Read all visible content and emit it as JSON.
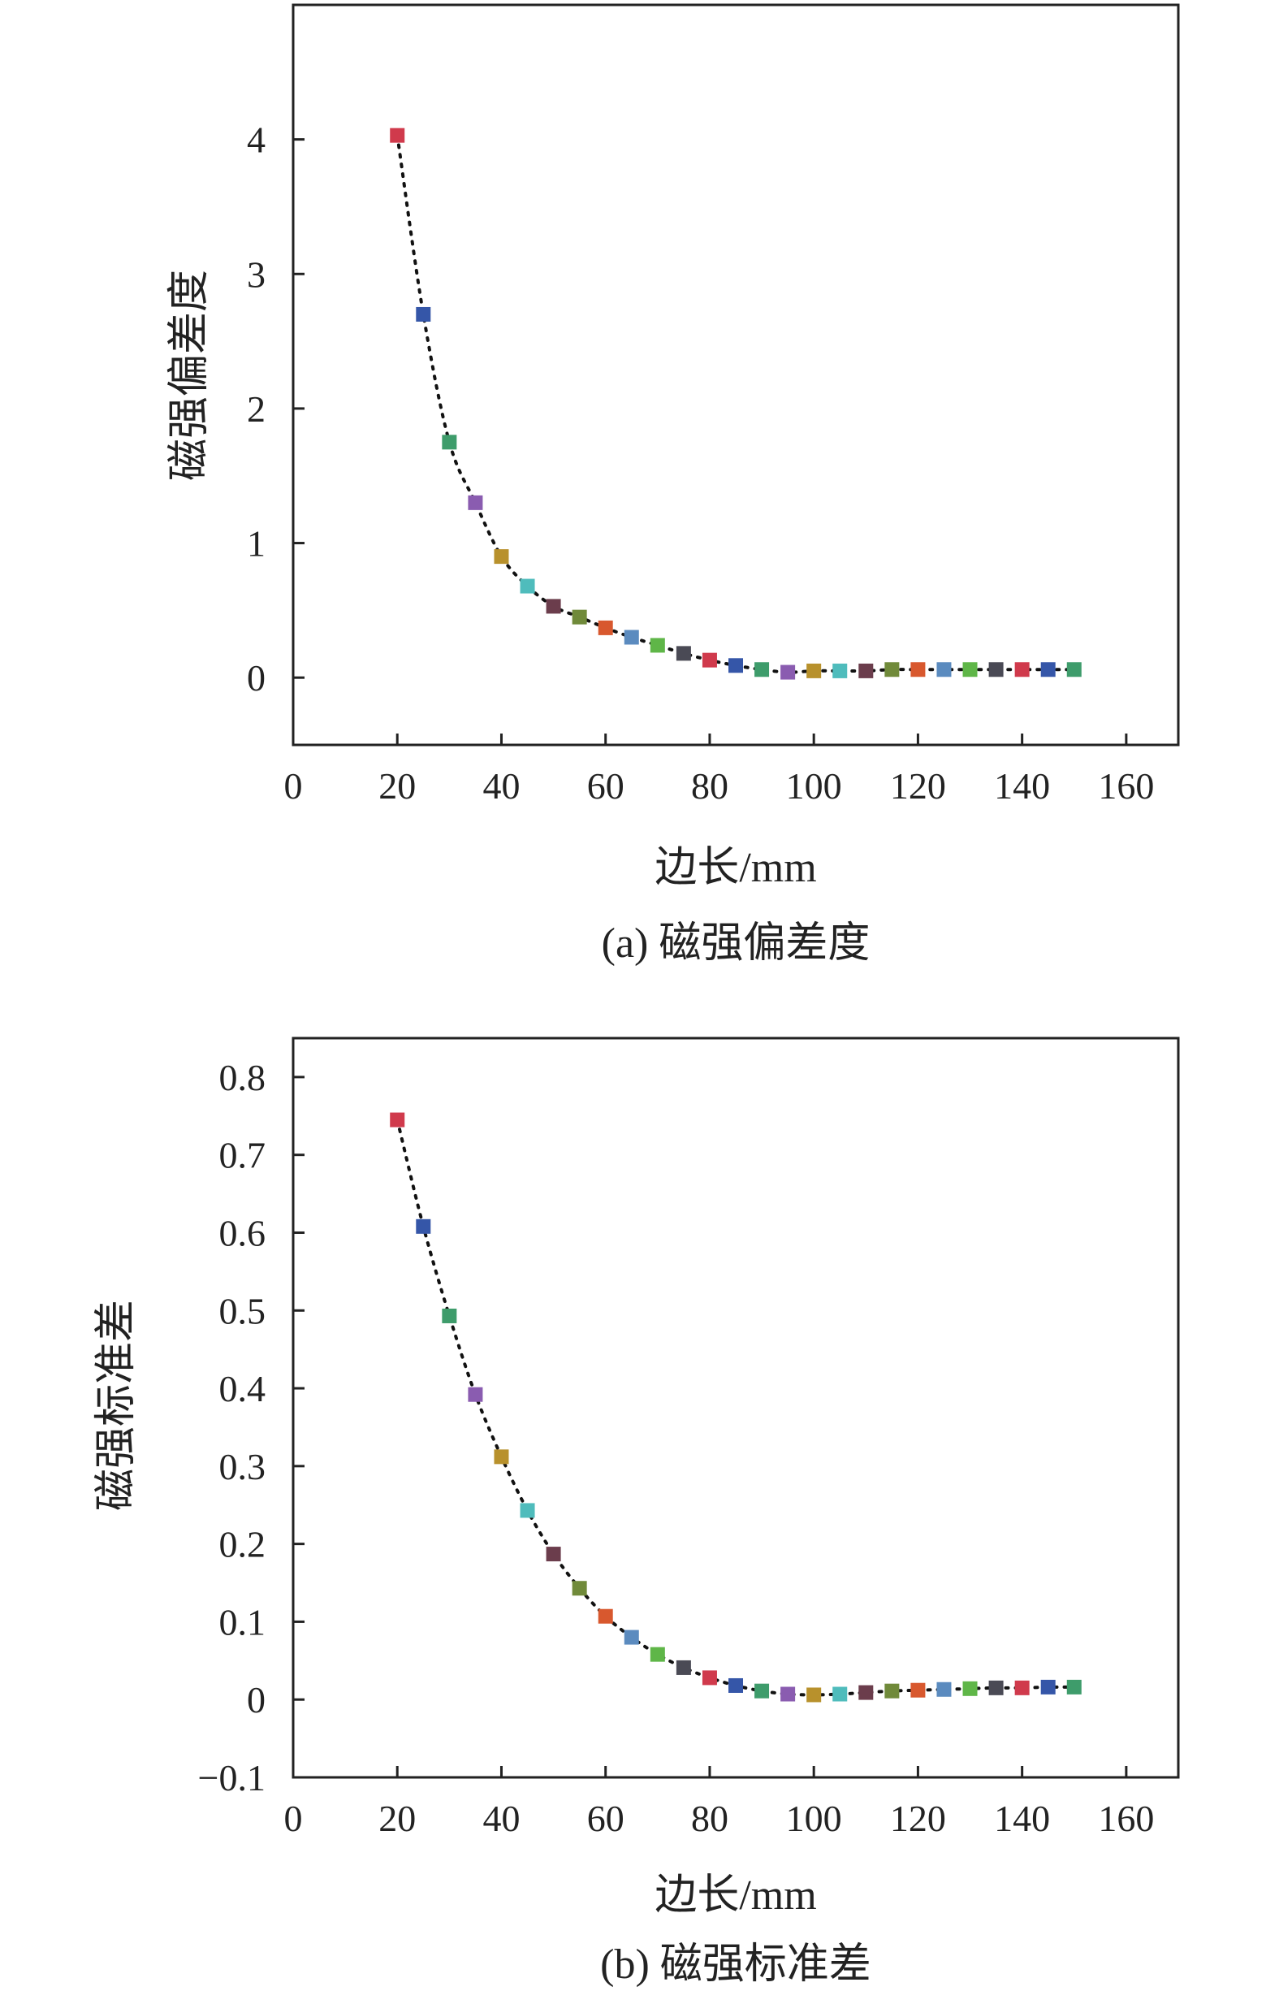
{
  "chart_data": [
    {
      "type": "scatter",
      "caption": "(a) 磁强偏差度",
      "xlabel": "边长/mm",
      "ylabel": "磁强偏差度",
      "xlim": [
        0,
        170
      ],
      "ylim": [
        -0.5,
        5.0
      ],
      "xticks": [
        0,
        20,
        40,
        60,
        80,
        100,
        120,
        140,
        160
      ],
      "yticks": [
        0,
        1,
        2,
        3,
        4
      ],
      "grid": false,
      "trend_line": "dotted",
      "series": [
        {
          "x": [
            20,
            25,
            30,
            35,
            40,
            45,
            50,
            55,
            60,
            65,
            70,
            75,
            80,
            85,
            90,
            95,
            100,
            105,
            110,
            115,
            120,
            125,
            130,
            135,
            140,
            145,
            150
          ],
          "y": [
            4.03,
            2.7,
            1.75,
            1.3,
            0.9,
            0.68,
            0.53,
            0.45,
            0.37,
            0.3,
            0.24,
            0.18,
            0.13,
            0.09,
            0.06,
            0.04,
            0.05,
            0.05,
            0.05,
            0.06,
            0.06,
            0.06,
            0.06,
            0.06,
            0.06,
            0.06,
            0.06
          ],
          "colors": [
            "#d03a4c",
            "#3556a8",
            "#3e9c6b",
            "#8a5cb0",
            "#b8912c",
            "#4fbcbc",
            "#6b3d4c",
            "#708a3a",
            "#d8582e",
            "#5b8bbf",
            "#5fb648",
            "#4a4a55",
            "#d03a4c",
            "#3556a8",
            "#3e9c6b",
            "#8a5cb0",
            "#b8912c",
            "#4fbcbc",
            "#6b3d4c",
            "#708a3a",
            "#d8582e",
            "#5b8bbf",
            "#5fb648",
            "#4a4a55",
            "#d03a4c",
            "#3556a8",
            "#3e9c6b"
          ]
        }
      ]
    },
    {
      "type": "scatter",
      "caption": "(b) 磁强标准差",
      "xlabel": "边长/mm",
      "ylabel": "磁强标准差",
      "xlim": [
        0,
        170
      ],
      "ylim": [
        -0.1,
        0.85
      ],
      "xticks": [
        0,
        20,
        40,
        60,
        80,
        100,
        120,
        140,
        160
      ],
      "yticks": [
        -0.1,
        0,
        0.1,
        0.2,
        0.3,
        0.4,
        0.5,
        0.6,
        0.7,
        0.8
      ],
      "ytick_labels": [
        "−0.1",
        "0",
        "0.1",
        "0.2",
        "0.3",
        "0.4",
        "0.5",
        "0.6",
        "0.7",
        "0.8"
      ],
      "grid": false,
      "trend_line": "dotted",
      "series": [
        {
          "x": [
            20,
            25,
            30,
            35,
            40,
            45,
            50,
            55,
            60,
            65,
            70,
            75,
            80,
            85,
            90,
            95,
            100,
            105,
            110,
            115,
            120,
            125,
            130,
            135,
            140,
            145,
            150
          ],
          "y": [
            0.745,
            0.608,
            0.493,
            0.392,
            0.312,
            0.243,
            0.187,
            0.143,
            0.107,
            0.08,
            0.058,
            0.041,
            0.028,
            0.018,
            0.011,
            0.007,
            0.006,
            0.007,
            0.009,
            0.011,
            0.012,
            0.013,
            0.014,
            0.015,
            0.015,
            0.016,
            0.016
          ],
          "colors": [
            "#d03a4c",
            "#3556a8",
            "#3e9c6b",
            "#8a5cb0",
            "#b8912c",
            "#4fbcbc",
            "#6b3d4c",
            "#708a3a",
            "#d8582e",
            "#5b8bbf",
            "#5fb648",
            "#4a4a55",
            "#d03a4c",
            "#3556a8",
            "#3e9c6b",
            "#8a5cb0",
            "#b8912c",
            "#4fbcbc",
            "#6b3d4c",
            "#708a3a",
            "#d8582e",
            "#5b8bbf",
            "#5fb648",
            "#4a4a55",
            "#d03a4c",
            "#3556a8",
            "#3e9c6b"
          ]
        }
      ]
    }
  ]
}
